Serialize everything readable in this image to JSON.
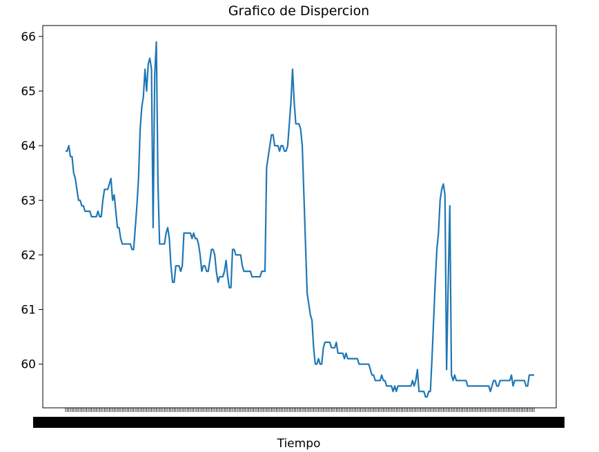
{
  "chart_data": {
    "type": "line",
    "title": "Grafico de Dispercion",
    "xlabel": "Tiempo",
    "ylabel": "",
    "ylim": [
      59.2,
      66.2
    ],
    "yticks": [
      60,
      61,
      62,
      63,
      64,
      65,
      66
    ],
    "grid": false,
    "series_color": "#1f77b4",
    "series": [
      {
        "values": [
          63.9,
          63.9,
          64.0,
          63.8,
          63.8,
          63.5,
          63.4,
          63.2,
          63.0,
          63.0,
          62.9,
          62.9,
          62.8,
          62.8,
          62.8,
          62.8,
          62.7,
          62.7,
          62.7,
          62.7,
          62.8,
          62.7,
          62.7,
          63.0,
          63.2,
          63.2,
          63.2,
          63.3,
          63.4,
          63.0,
          63.1,
          62.8,
          62.5,
          62.5,
          62.3,
          62.2,
          62.2,
          62.2,
          62.2,
          62.2,
          62.2,
          62.1,
          62.1,
          62.5,
          62.9,
          63.4,
          64.3,
          64.7,
          64.9,
          65.4,
          65.0,
          65.5,
          65.6,
          65.4,
          62.5,
          65.3,
          65.9,
          63.3,
          62.2,
          62.2,
          62.2,
          62.2,
          62.4,
          62.5,
          62.3,
          61.8,
          61.5,
          61.5,
          61.8,
          61.8,
          61.8,
          61.7,
          61.8,
          62.4,
          62.4,
          62.4,
          62.4,
          62.4,
          62.3,
          62.4,
          62.3,
          62.3,
          62.2,
          62.0,
          61.7,
          61.8,
          61.8,
          61.7,
          61.7,
          61.9,
          62.1,
          62.1,
          62.0,
          61.7,
          61.5,
          61.6,
          61.6,
          61.6,
          61.7,
          61.9,
          61.6,
          61.4,
          61.4,
          62.1,
          62.1,
          62.0,
          62.0,
          62.0,
          62.0,
          61.8,
          61.7,
          61.7,
          61.7,
          61.7,
          61.7,
          61.6,
          61.6,
          61.6,
          61.6,
          61.6,
          61.6,
          61.7,
          61.7,
          61.7,
          63.6,
          63.8,
          64.0,
          64.2,
          64.2,
          64.0,
          64.0,
          64.0,
          63.9,
          64.0,
          64.0,
          63.9,
          63.9,
          64.0,
          64.4,
          64.8,
          65.4,
          64.8,
          64.4,
          64.4,
          64.4,
          64.3,
          64.0,
          63.1,
          62.2,
          61.3,
          61.1,
          60.9,
          60.8,
          60.3,
          60.0,
          60.0,
          60.1,
          60.0,
          60.0,
          60.3,
          60.4,
          60.4,
          60.4,
          60.4,
          60.3,
          60.3,
          60.3,
          60.4,
          60.2,
          60.2,
          60.2,
          60.2,
          60.1,
          60.2,
          60.1,
          60.1,
          60.1,
          60.1,
          60.1,
          60.1,
          60.1,
          60.0,
          60.0,
          60.0,
          60.0,
          60.0,
          60.0,
          60.0,
          59.9,
          59.8,
          59.8,
          59.7,
          59.7,
          59.7,
          59.7,
          59.8,
          59.7,
          59.7,
          59.6,
          59.6,
          59.6,
          59.6,
          59.5,
          59.6,
          59.5,
          59.6,
          59.6,
          59.6,
          59.6,
          59.6,
          59.6,
          59.6,
          59.6,
          59.6,
          59.7,
          59.6,
          59.7,
          59.9,
          59.5,
          59.5,
          59.5,
          59.5,
          59.4,
          59.4,
          59.5,
          59.5,
          60.1,
          60.8,
          61.5,
          62.1,
          62.4,
          63.0,
          63.2,
          63.3,
          63.1,
          59.9,
          61.5,
          62.9,
          59.8,
          59.7,
          59.8,
          59.7,
          59.7,
          59.7,
          59.7,
          59.7,
          59.7,
          59.7,
          59.6,
          59.6,
          59.6,
          59.6,
          59.6,
          59.6,
          59.6,
          59.6,
          59.6,
          59.6,
          59.6,
          59.6,
          59.6,
          59.6,
          59.5,
          59.6,
          59.7,
          59.7,
          59.6,
          59.6,
          59.7,
          59.7,
          59.7,
          59.7,
          59.7,
          59.7,
          59.7,
          59.8,
          59.6,
          59.7,
          59.7,
          59.7,
          59.7,
          59.7,
          59.7,
          59.7,
          59.6,
          59.6,
          59.8,
          59.8,
          59.8,
          59.8
        ]
      }
    ]
  }
}
